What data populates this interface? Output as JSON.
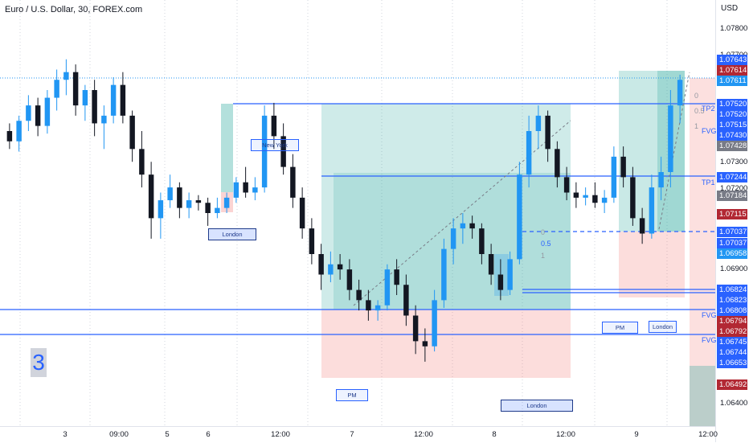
{
  "header": {
    "title": "Euro / U.S. Dollar, 30, FOREX.com"
  },
  "price_axis": {
    "currency": "USD",
    "ticks": [
      "1.07800",
      "1.07700",
      "1.07300",
      "1.07200",
      "1.06900",
      "1.06400"
    ]
  },
  "price_labels": [
    {
      "text": "1.07643",
      "color": "#2962ff"
    },
    {
      "text": "1.07614",
      "color": "#b22833"
    },
    {
      "text": "1.07611",
      "color": "#2196f3"
    },
    {
      "text": "1.07520",
      "color": "#2962ff"
    },
    {
      "text": "1.07520",
      "color": "#2962ff"
    },
    {
      "text": "1.07515",
      "color": "#2962ff"
    },
    {
      "text": "1.07430",
      "color": "#2962ff"
    },
    {
      "text": "1.07428",
      "color": "#787b86"
    },
    {
      "text": "1.07244",
      "color": "#2962ff"
    },
    {
      "text": "1.07184",
      "color": "#787b86"
    },
    {
      "text": "1.07115",
      "color": "#b22833"
    },
    {
      "text": "1.07037",
      "color": "#2962ff"
    },
    {
      "text": "1.07037",
      "color": "#2962ff"
    },
    {
      "text": "1.06958",
      "color": "#2196f3"
    },
    {
      "text": "1.06824",
      "color": "#2962ff"
    },
    {
      "text": "1.06823",
      "color": "#2962ff"
    },
    {
      "text": "1.06808",
      "color": "#2962ff"
    },
    {
      "text": "1.06794",
      "color": "#b22833"
    },
    {
      "text": "1.06792",
      "color": "#b22833"
    },
    {
      "text": "1.06745",
      "color": "#2962ff"
    },
    {
      "text": "1.06744",
      "color": "#2962ff"
    },
    {
      "text": "1.06653",
      "color": "#2962ff"
    },
    {
      "text": "1.06492",
      "color": "#b22833"
    }
  ],
  "time_axis": {
    "ticks": [
      "3",
      "09:00",
      "5",
      "6",
      "12:00",
      "7",
      "12:00",
      "8",
      "12:00",
      "9",
      "12:00"
    ]
  },
  "session_labels": [
    "New York",
    "London",
    "PM",
    "London",
    "PM",
    "London"
  ],
  "annotations": {
    "tp2": "TP2",
    "tp1": "TP1",
    "fvg": "FVG",
    "fib_0": "0",
    "fib_05": "0.5",
    "fib_1": "1",
    "number": "3"
  },
  "colors": {
    "up": "#2196f3",
    "down": "#131722",
    "line": "#2962ff",
    "profit_zone": "#26a69a",
    "loss_zone": "#ef5350"
  },
  "chart_data": {
    "type": "candlestick",
    "symbol": "Euro / U.S. Dollar",
    "interval": "30",
    "candles": [
      [
        1.0742,
        1.0745,
        1.0735,
        1.0738
      ],
      [
        1.0738,
        1.0748,
        1.0734,
        1.0746
      ],
      [
        1.0746,
        1.0756,
        1.0742,
        1.0752
      ],
      [
        1.0752,
        1.0755,
        1.074,
        1.0744
      ],
      [
        1.0744,
        1.0758,
        1.0741,
        1.0755
      ],
      [
        1.0755,
        1.0766,
        1.075,
        1.0762
      ],
      [
        1.0762,
        1.077,
        1.0756,
        1.0765
      ],
      [
        1.0765,
        1.0768,
        1.0748,
        1.0752
      ],
      [
        1.0752,
        1.076,
        1.0746,
        1.0758
      ],
      [
        1.0758,
        1.0762,
        1.074,
        1.0745
      ],
      [
        1.0745,
        1.0752,
        1.0735,
        1.0748
      ],
      [
        1.0748,
        1.0763,
        1.0745,
        1.076
      ],
      [
        1.076,
        1.0765,
        1.0745,
        1.0748
      ],
      [
        1.0748,
        1.075,
        1.073,
        1.0735
      ],
      [
        1.0735,
        1.0742,
        1.072,
        1.0725
      ],
      [
        1.0725,
        1.073,
        1.07,
        1.0708
      ],
      [
        1.0708,
        1.0718,
        1.07,
        1.0715
      ],
      [
        1.0715,
        1.0725,
        1.0712,
        1.072
      ],
      [
        1.072,
        1.0722,
        1.0708,
        1.0712
      ],
      [
        1.0712,
        1.0718,
        1.0708,
        1.0715
      ],
      [
        1.0715,
        1.0717,
        1.0711,
        1.0714
      ],
      [
        1.0714,
        1.0716,
        1.0705,
        1.071
      ],
      [
        1.071,
        1.0716,
        1.0708,
        1.0712
      ],
      [
        1.0712,
        1.0718,
        1.071,
        1.0716
      ],
      [
        1.0716,
        1.0724,
        1.0714,
        1.0722
      ],
      [
        1.0722,
        1.0728,
        1.0716,
        1.0718
      ],
      [
        1.0718,
        1.0724,
        1.0715,
        1.072
      ],
      [
        1.072,
        1.0752,
        1.0718,
        1.0748
      ],
      [
        1.0748,
        1.0753,
        1.0735,
        1.074
      ],
      [
        1.074,
        1.0745,
        1.0725,
        1.0728
      ],
      [
        1.0728,
        1.0733,
        1.0712,
        1.0716
      ],
      [
        1.0716,
        1.072,
        1.07,
        1.0704
      ],
      [
        1.0704,
        1.0708,
        1.069,
        1.0694
      ],
      [
        1.0694,
        1.0698,
        1.068,
        1.0686
      ],
      [
        1.0686,
        1.0695,
        1.0683,
        1.069
      ],
      [
        1.069,
        1.0694,
        1.0684,
        1.0688
      ],
      [
        1.0688,
        1.0692,
        1.0676,
        1.068
      ],
      [
        1.068,
        1.0684,
        1.0672,
        1.0676
      ],
      [
        1.0676,
        1.068,
        1.0668,
        1.0672
      ],
      [
        1.0672,
        1.0676,
        1.0668,
        1.0674
      ],
      [
        1.0674,
        1.069,
        1.0672,
        1.0688
      ],
      [
        1.0688,
        1.0692,
        1.0678,
        1.0682
      ],
      [
        1.0682,
        1.0686,
        1.0666,
        1.067
      ],
      [
        1.067,
        1.0674,
        1.0655,
        1.066
      ],
      [
        1.066,
        1.0665,
        1.0652,
        1.0658
      ],
      [
        1.0658,
        1.068,
        1.0656,
        1.0676
      ],
      [
        1.0676,
        1.07,
        1.0673,
        1.0696
      ],
      [
        1.0696,
        1.0708,
        1.069,
        1.0704
      ],
      [
        1.0704,
        1.071,
        1.0698,
        1.0706
      ],
      [
        1.0706,
        1.0709,
        1.07,
        1.0704
      ],
      [
        1.0704,
        1.0706,
        1.069,
        1.0694
      ],
      [
        1.0694,
        1.0698,
        1.0682,
        1.0686
      ],
      [
        1.0686,
        1.0692,
        1.0676,
        1.068
      ],
      [
        1.068,
        1.0695,
        1.0678,
        1.0692
      ],
      [
        1.0692,
        1.073,
        1.069,
        1.0725
      ],
      [
        1.0725,
        1.0748,
        1.072,
        1.0742
      ],
      [
        1.0742,
        1.0752,
        1.0735,
        1.0748
      ],
      [
        1.0748,
        1.075,
        1.073,
        1.0735
      ],
      [
        1.0735,
        1.0738,
        1.072,
        1.0724
      ],
      [
        1.0724,
        1.0728,
        1.0715,
        1.0718
      ],
      [
        1.0718,
        1.0722,
        1.0712,
        1.0716
      ],
      [
        1.0716,
        1.072,
        1.0713,
        1.0717
      ],
      [
        1.0717,
        1.0722,
        1.0712,
        1.0714
      ],
      [
        1.0714,
        1.0719,
        1.071,
        1.0716
      ],
      [
        1.0716,
        1.0736,
        1.0714,
        1.0732
      ],
      [
        1.0732,
        1.0736,
        1.072,
        1.0724
      ],
      [
        1.0724,
        1.0728,
        1.0705,
        1.0708
      ],
      [
        1.0708,
        1.0712,
        1.0698,
        1.0702
      ],
      [
        1.0702,
        1.0725,
        1.07,
        1.072
      ],
      [
        1.072,
        1.0732,
        1.0715,
        1.0726
      ],
      [
        1.0726,
        1.0758,
        1.072,
        1.0752
      ],
      [
        1.0752,
        1.0764,
        1.0745,
        1.0762
      ]
    ],
    "horizontal_levels": [
      1.0752,
      1.07244,
      1.07037,
      1.06824,
      1.06808,
      1.06745
    ],
    "ylim": [
      1.063,
      1.079
    ]
  }
}
